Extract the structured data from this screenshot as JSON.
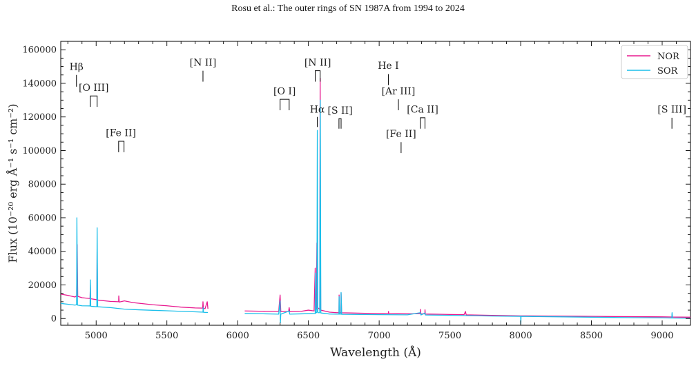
{
  "header": {
    "title": "Rosu et al.: The outer rings of SN 1987A from 1994 to 2024"
  },
  "chart_data": {
    "type": "line",
    "title": "",
    "xlabel": "Wavelength (Å)",
    "ylabel": "Flux (10⁻²⁰ erg Å⁻¹ s⁻¹ cm⁻²)",
    "xlim": [
      4750,
      9200
    ],
    "ylim": [
      -4000,
      165000
    ],
    "xticks": [
      5000,
      5500,
      6000,
      6500,
      7000,
      7500,
      8000,
      8500,
      9000
    ],
    "yticks": [
      0,
      20000,
      40000,
      60000,
      80000,
      100000,
      120000,
      140000,
      160000
    ],
    "legend_position": "top-right",
    "grid": false,
    "series": [
      {
        "name": "NOR",
        "color": "#e8198f",
        "segments": [
          [
            [
              4750,
              14500
            ],
            [
              4800,
              13800
            ],
            [
              4850,
              12800
            ],
            [
              4862,
              13500
            ],
            [
              4866,
              44000
            ],
            [
              4870,
              13200
            ],
            [
              4900,
              12400
            ],
            [
              4957,
              11900
            ],
            [
              4959,
              20000
            ],
            [
              4961,
              11800
            ],
            [
              5005,
              11200
            ],
            [
              5007,
              43000
            ],
            [
              5010,
              11000
            ],
            [
              5100,
              10200
            ],
            [
              5159,
              10000
            ],
            [
              5160,
              13500
            ],
            [
              5163,
              9800
            ],
            [
              5200,
              10500
            ],
            [
              5260,
              9500
            ],
            [
              5400,
              8200
            ],
            [
              5500,
              7600
            ],
            [
              5600,
              6800
            ],
            [
              5700,
              6300
            ],
            [
              5753,
              6200
            ],
            [
              5755,
              10000
            ],
            [
              5758,
              6000
            ],
            [
              5770,
              5900
            ],
            [
              5785,
              10000
            ],
            [
              5790,
              5800
            ]
          ],
          [
            [
              6050,
              4500
            ],
            [
              6200,
              4300
            ],
            [
              6290,
              4200
            ],
            [
              6300,
              14000
            ],
            [
              6305,
              4100
            ],
            [
              6360,
              4200
            ],
            [
              6364,
              6500
            ],
            [
              6368,
              4100
            ],
            [
              6450,
              4300
            ],
            [
              6500,
              5000
            ],
            [
              6540,
              4500
            ],
            [
              6548,
              30000
            ],
            [
              6552,
              5000
            ],
            [
              6556,
              6000
            ],
            [
              6560,
              45000
            ],
            [
              6565,
              6500
            ],
            [
              6580,
              5500
            ],
            [
              6583,
              143000
            ],
            [
              6587,
              5000
            ],
            [
              6650,
              3800
            ],
            [
              6700,
              3500
            ],
            [
              6716,
              3500
            ],
            [
              6717,
              14000
            ],
            [
              6720,
              3500
            ],
            [
              6730,
              3500
            ],
            [
              6731,
              15000
            ],
            [
              6735,
              3400
            ],
            [
              6800,
              3300
            ],
            [
              7000,
              2900
            ],
            [
              7065,
              3000
            ],
            [
              7066,
              4200
            ],
            [
              7068,
              2900
            ],
            [
              7200,
              2800
            ],
            [
              7291,
              2900
            ],
            [
              7292,
              5500
            ],
            [
              7294,
              2800
            ],
            [
              7323,
              2800
            ],
            [
              7324,
              5200
            ],
            [
              7326,
              2700
            ],
            [
              7500,
              2400
            ],
            [
              7600,
              2300
            ],
            [
              7610,
              4200
            ],
            [
              7615,
              2200
            ],
            [
              7800,
              1900
            ],
            [
              8000,
              1600
            ],
            [
              8200,
              1500
            ],
            [
              8400,
              1400
            ],
            [
              8600,
              1200
            ],
            [
              8800,
              1100
            ],
            [
              9000,
              1000
            ],
            [
              9069,
              900
            ],
            [
              9070,
              2500
            ],
            [
              9072,
              900
            ],
            [
              9200,
              800
            ]
          ]
        ]
      },
      {
        "name": "SOR",
        "color": "#1cbfea",
        "segments": [
          [
            [
              4750,
              9000
            ],
            [
              4800,
              8500
            ],
            [
              4850,
              8000
            ],
            [
              4862,
              8200
            ],
            [
              4864,
              60000
            ],
            [
              4868,
              8000
            ],
            [
              4900,
              7600
            ],
            [
              4957,
              7500
            ],
            [
              4959,
              23000
            ],
            [
              4962,
              7300
            ],
            [
              5005,
              7000
            ],
            [
              5007,
              54000
            ],
            [
              5011,
              7000
            ],
            [
              5100,
              6500
            ],
            [
              5200,
              5600
            ],
            [
              5300,
              5200
            ],
            [
              5400,
              4900
            ],
            [
              5500,
              4600
            ],
            [
              5600,
              4300
            ],
            [
              5700,
              4000
            ],
            [
              5755,
              3800
            ],
            [
              5756,
              6500
            ],
            [
              5759,
              3700
            ],
            [
              5790,
              3600
            ]
          ],
          [
            [
              6050,
              3000
            ],
            [
              6200,
              2800
            ],
            [
              6290,
              2600
            ],
            [
              6300,
              10500
            ],
            [
              6302,
              -2500
            ],
            [
              6305,
              2600
            ],
            [
              6364,
              4500
            ],
            [
              6368,
              2600
            ],
            [
              6450,
              2800
            ],
            [
              6548,
              3000
            ],
            [
              6549,
              27000
            ],
            [
              6552,
              3200
            ],
            [
              6560,
              3800
            ],
            [
              6563,
              112000
            ],
            [
              6567,
              3500
            ],
            [
              6580,
              3500
            ],
            [
              6584,
              130000
            ],
            [
              6588,
              3300
            ],
            [
              6650,
              2700
            ],
            [
              6700,
              2600
            ],
            [
              6716,
              2600
            ],
            [
              6717,
              13000
            ],
            [
              6720,
              2600
            ],
            [
              6730,
              2600
            ],
            [
              6731,
              15500
            ],
            [
              6735,
              2500
            ],
            [
              7000,
              2300
            ],
            [
              7200,
              2200
            ],
            [
              7292,
              3500
            ],
            [
              7295,
              2100
            ],
            [
              7324,
              3300
            ],
            [
              7327,
              2100
            ],
            [
              7500,
              1900
            ],
            [
              7800,
              1500
            ],
            [
              8000,
              1300
            ],
            [
              8001,
              -3000
            ],
            [
              8003,
              1300
            ],
            [
              8200,
              1100
            ],
            [
              8400,
              900
            ],
            [
              8600,
              700
            ],
            [
              8800,
              500
            ],
            [
              9000,
              400
            ],
            [
              9068,
              300
            ],
            [
              9070,
              3500
            ],
            [
              9072,
              300
            ],
            [
              9200,
              200
            ]
          ]
        ]
      }
    ],
    "annotations": [
      {
        "label": "Hβ",
        "x": 4861,
        "label_y": 148000,
        "lines": [
          4861
        ],
        "y_top": 145000,
        "y_bot": 138000
      },
      {
        "label": "[O III]",
        "x": 4983,
        "label_y": 135500,
        "lines": [
          4959,
          5007
        ],
        "y_top": 132500,
        "y_bot": 126000
      },
      {
        "label": "[Fe II]",
        "x": 5175,
        "label_y": 108500,
        "lines": [
          5159,
          5197
        ],
        "y_top": 105500,
        "y_bot": 99000
      },
      {
        "label": "[N II]",
        "x": 5755,
        "label_y": 150500,
        "lines": [
          5755
        ],
        "y_top": 147500,
        "y_bot": 141000
      },
      {
        "label": "[O I]",
        "x": 6332,
        "label_y": 133500,
        "lines": [
          6300,
          6364
        ],
        "y_top": 130500,
        "y_bot": 124000
      },
      {
        "label": "Hα",
        "x": 6563,
        "label_y": 122500,
        "lines": [
          6563
        ],
        "y_top": 120000,
        "y_bot": 114000
      },
      {
        "label": "[N II]",
        "x": 6566,
        "label_y": 150500,
        "lines": [
          6548,
          6583
        ],
        "y_top": 147500,
        "y_bot": 141000
      },
      {
        "label": "[S II]",
        "x": 6724,
        "label_y": 122000,
        "lines": [
          6716,
          6731
        ],
        "y_top": 119000,
        "y_bot": 113000
      },
      {
        "label": "He I",
        "x": 7065,
        "label_y": 148500,
        "lines": [
          7065
        ],
        "y_top": 145500,
        "y_bot": 139000
      },
      {
        "label": "[Ar III]",
        "x": 7136,
        "label_y": 133500,
        "lines": [
          7136
        ],
        "y_top": 130500,
        "y_bot": 124000
      },
      {
        "label": "[Ca II]",
        "x": 7307,
        "label_y": 122500,
        "lines": [
          7291,
          7324
        ],
        "y_top": 119500,
        "y_bot": 113000
      },
      {
        "label": "[Fe II]",
        "x": 7155,
        "label_y": 108000,
        "lines": [
          7155
        ],
        "y_top": 105000,
        "y_bot": 98500
      },
      {
        "label": "[S III]",
        "x": 9069,
        "label_y": 122500,
        "lines": [
          9069
        ],
        "y_top": 119500,
        "y_bot": 113000
      }
    ]
  }
}
